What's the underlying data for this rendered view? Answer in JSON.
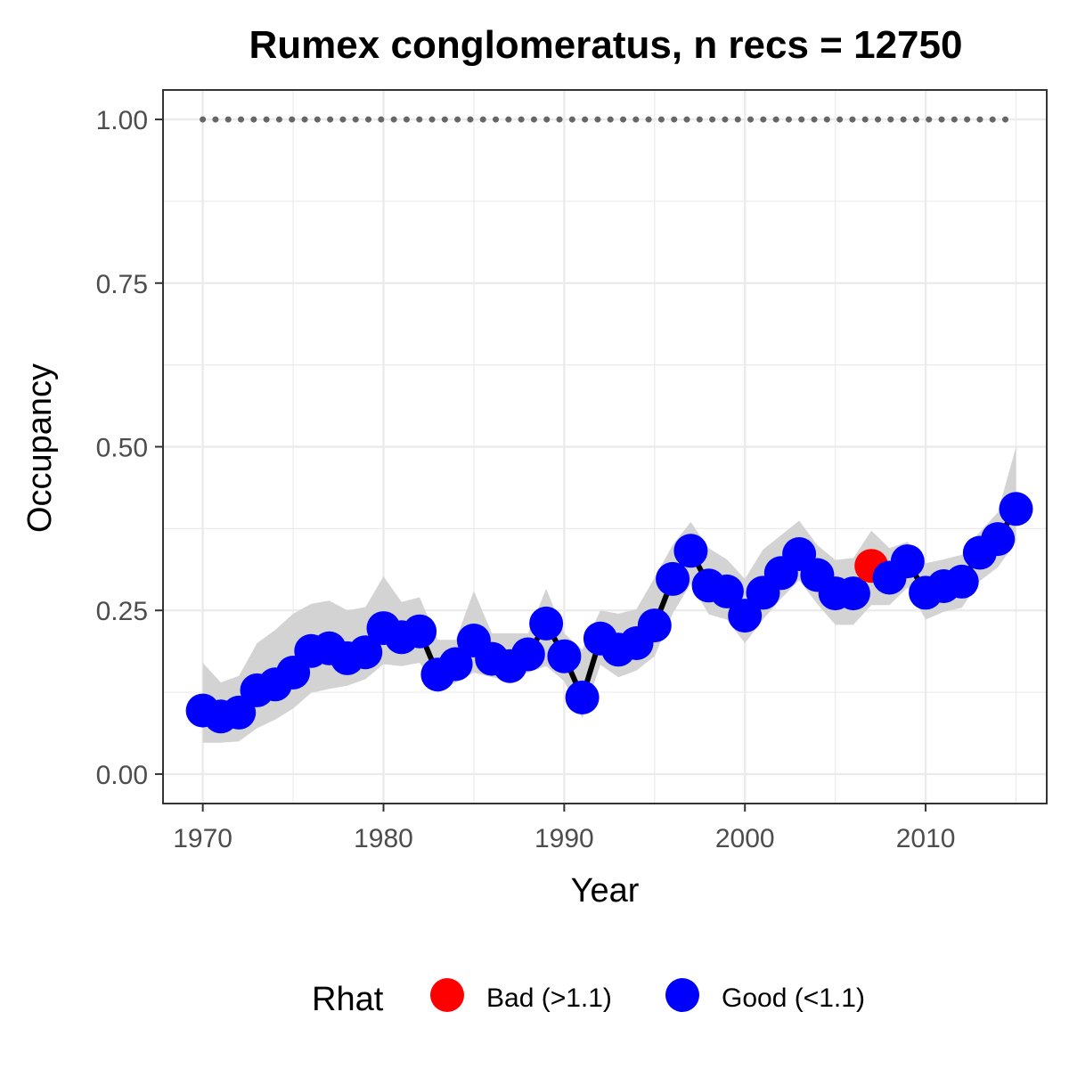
{
  "chart_data": {
    "type": "line",
    "title": "Rumex conglomeratus, n recs = 12750",
    "xlabel": "Year",
    "ylabel": "Occupancy",
    "xlim": [
      1967.8,
      2016.7
    ],
    "ylim": [
      -0.045,
      1.045
    ],
    "x_ticks": [
      1970,
      1980,
      1990,
      2000,
      2010
    ],
    "x_tick_labels": [
      "1970",
      "1980",
      "1990",
      "2000",
      "2010"
    ],
    "y_ticks": [
      0,
      0.25,
      0.5,
      0.75,
      1.0
    ],
    "y_tick_labels": [
      "0.00",
      "0.25",
      "0.50",
      "0.75",
      "1.00"
    ],
    "grid": true,
    "x": [
      1970,
      1971,
      1972,
      1973,
      1974,
      1975,
      1976,
      1977,
      1978,
      1979,
      1980,
      1981,
      1982,
      1983,
      1984,
      1985,
      1986,
      1987,
      1988,
      1989,
      1990,
      1991,
      1992,
      1993,
      1994,
      1995,
      1996,
      1997,
      1998,
      1999,
      2000,
      2001,
      2002,
      2003,
      2004,
      2005,
      2006,
      2007,
      2008,
      2009,
      2010,
      2011,
      2012,
      2013,
      2014,
      2015
    ],
    "occupancy": [
      0.097,
      0.088,
      0.094,
      0.128,
      0.137,
      0.155,
      0.188,
      0.192,
      0.177,
      0.186,
      0.223,
      0.209,
      0.218,
      0.152,
      0.168,
      0.204,
      0.176,
      0.165,
      0.183,
      0.23,
      0.18,
      0.117,
      0.207,
      0.19,
      0.2,
      0.227,
      0.298,
      0.341,
      0.288,
      0.279,
      0.242,
      0.277,
      0.307,
      0.336,
      0.304,
      0.276,
      0.276,
      0.318,
      0.3,
      0.325,
      0.277,
      0.287,
      0.294,
      0.338,
      0.359,
      0.405
    ],
    "lower": [
      0.048,
      0.048,
      0.05,
      0.07,
      0.083,
      0.1,
      0.124,
      0.13,
      0.135,
      0.145,
      0.168,
      0.165,
      0.17,
      0.125,
      0.14,
      0.155,
      0.148,
      0.143,
      0.155,
      0.165,
      0.142,
      0.085,
      0.167,
      0.148,
      0.158,
      0.18,
      0.245,
      0.291,
      0.244,
      0.236,
      0.2,
      0.236,
      0.268,
      0.296,
      0.26,
      0.228,
      0.228,
      0.258,
      0.258,
      0.285,
      0.236,
      0.248,
      0.254,
      0.295,
      0.316,
      0.355
    ],
    "upper": [
      0.17,
      0.14,
      0.15,
      0.2,
      0.22,
      0.245,
      0.26,
      0.265,
      0.25,
      0.255,
      0.302,
      0.263,
      0.27,
      0.205,
      0.205,
      0.28,
      0.215,
      0.215,
      0.215,
      0.283,
      0.215,
      0.19,
      0.25,
      0.245,
      0.252,
      0.3,
      0.35,
      0.385,
      0.345,
      0.328,
      0.298,
      0.343,
      0.365,
      0.387,
      0.35,
      0.327,
      0.33,
      0.372,
      0.345,
      0.355,
      0.322,
      0.328,
      0.335,
      0.37,
      0.4,
      0.5
    ],
    "rhat_class": [
      "Good",
      "Good",
      "Good",
      "Good",
      "Good",
      "Good",
      "Good",
      "Good",
      "Good",
      "Good",
      "Good",
      "Good",
      "Good",
      "Good",
      "Good",
      "Good",
      "Good",
      "Good",
      "Good",
      "Good",
      "Good",
      "Good",
      "Good",
      "Good",
      "Good",
      "Good",
      "Good",
      "Good",
      "Good",
      "Good",
      "Good",
      "Good",
      "Good",
      "Good",
      "Good",
      "Good",
      "Good",
      "Bad",
      "Good",
      "Good",
      "Good",
      "Good",
      "Good",
      "Good",
      "Good",
      "Good"
    ],
    "reference_line": {
      "y": 1.0,
      "style": "dotted",
      "color": "#666666"
    },
    "ribbon_color": "#d3d3d3",
    "line_color": "#000000",
    "legend": {
      "title": "Rhat",
      "position": "bottom",
      "entries": [
        {
          "key": "Bad",
          "label": "Bad (>1.1)",
          "color": "#ff0000"
        },
        {
          "key": "Good",
          "label": "Good (<1.1)",
          "color": "#0000ff"
        }
      ]
    }
  }
}
